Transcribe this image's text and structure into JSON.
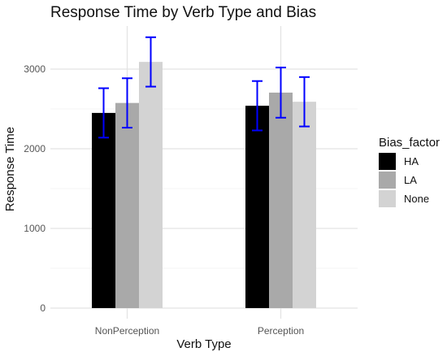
{
  "chart_data": {
    "type": "bar",
    "title": "Response Time by Verb Type and Bias",
    "xlabel": "Verb Type",
    "ylabel": "Response Time",
    "categories": [
      "NonPerception",
      "Perception"
    ],
    "series": [
      {
        "name": "HA",
        "values": [
          2450,
          2540
        ],
        "error": [
          [
            2140,
            2760
          ],
          [
            2230,
            2850
          ]
        ],
        "color": "#000000"
      },
      {
        "name": "LA",
        "values": [
          2575,
          2705
        ],
        "error": [
          [
            2265,
            2885
          ],
          [
            2390,
            3020
          ]
        ],
        "color": "#a9a9a9"
      },
      {
        "name": "None",
        "values": [
          3090,
          2590
        ],
        "error": [
          [
            2780,
            3400
          ],
          [
            2280,
            2900
          ]
        ],
        "color": "#d3d3d3"
      }
    ],
    "yticks": [
      0,
      1000,
      2000,
      3000
    ],
    "ylim": [
      0,
      3450
    ],
    "legend_title": "Bias_factor",
    "legend_position": "right",
    "error_bar_color": "#0000ff",
    "grid": true
  }
}
